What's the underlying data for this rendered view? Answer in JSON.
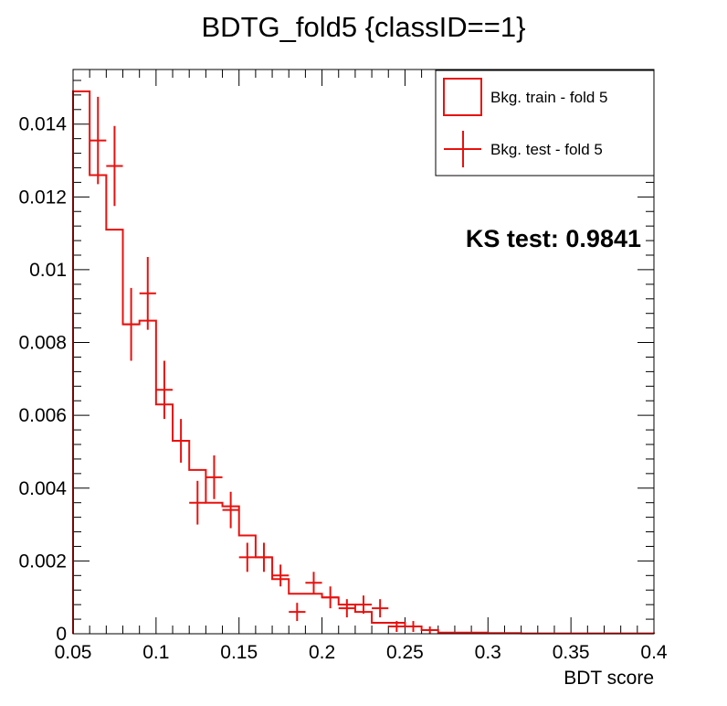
{
  "chart_data": {
    "type": "histogram",
    "title": "BDTG_fold5 {classID==1}",
    "xlabel": "BDT score",
    "ylabel": "",
    "xlim": [
      0.05,
      0.4
    ],
    "ylim": [
      0,
      0.0155
    ],
    "x_ticks": [
      "0.05",
      "0.1",
      "0.15",
      "0.2",
      "0.25",
      "0.3",
      "0.35",
      "0.4"
    ],
    "y_ticks": [
      "0",
      "0.002",
      "0.004",
      "0.006",
      "0.008",
      "0.01",
      "0.012",
      "0.014"
    ],
    "bin_width": 0.01,
    "color": "#e8110e",
    "legend_position": "top-right",
    "series": [
      {
        "name": "Bkg. train - fold 5",
        "style": "step",
        "bin_edges": [
          0.05,
          0.06,
          0.07,
          0.08,
          0.09,
          0.1,
          0.11,
          0.12,
          0.13,
          0.14,
          0.15,
          0.16,
          0.17,
          0.18,
          0.19,
          0.2,
          0.21,
          0.22,
          0.23,
          0.24,
          0.25,
          0.26,
          0.27,
          0.28,
          0.29,
          0.3,
          0.31,
          0.32,
          0.33,
          0.34,
          0.35,
          0.36,
          0.37,
          0.38,
          0.39,
          0.4
        ],
        "values": [
          0.0149,
          0.0126,
          0.0111,
          0.0085,
          0.0086,
          0.0063,
          0.0053,
          0.0045,
          0.0036,
          0.0035,
          0.0027,
          0.0021,
          0.0015,
          0.0011,
          0.0011,
          0.001,
          0.0008,
          0.0006,
          0.0003,
          0.0003,
          0.0002,
          0.0001,
          3e-05,
          3e-05,
          3e-05,
          2e-05,
          2e-05,
          1e-05,
          1e-05,
          1e-05,
          1e-05,
          1e-05,
          1e-05,
          1e-05,
          1e-05
        ]
      },
      {
        "name": "Bkg. test - fold 5",
        "style": "errorbar",
        "x": [
          0.065,
          0.075,
          0.085,
          0.095,
          0.105,
          0.115,
          0.125,
          0.135,
          0.145,
          0.155,
          0.165,
          0.175,
          0.185,
          0.195,
          0.205,
          0.215,
          0.225,
          0.235,
          0.245,
          0.255,
          0.265
        ],
        "values": [
          0.01355,
          0.01285,
          0.0085,
          0.00935,
          0.0067,
          0.0053,
          0.0036,
          0.0043,
          0.0034,
          0.0021,
          0.0021,
          0.0016,
          0.0006,
          0.0014,
          0.001,
          0.0007,
          0.0008,
          0.0007,
          0.0002,
          0.0002,
          0.0001
        ],
        "errors": [
          0.0012,
          0.0011,
          0.001,
          0.001,
          0.0008,
          0.0006,
          0.0006,
          0.0006,
          0.0005,
          0.0004,
          0.0004,
          0.0003,
          0.00025,
          0.0003,
          0.0003,
          0.00025,
          0.00025,
          0.00025,
          0.00015,
          0.00015,
          0.0001
        ]
      }
    ],
    "annotation": "KS test: 0.9841"
  }
}
